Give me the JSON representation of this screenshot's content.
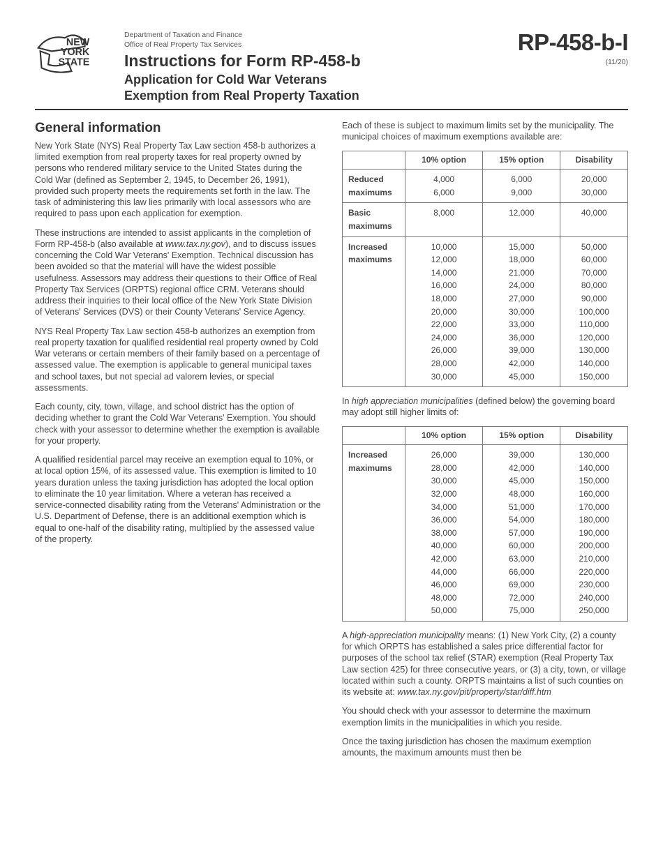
{
  "header": {
    "dept_line1": "Department of Taxation and Finance",
    "dept_line2": "Office of Real Property Tax Services",
    "title": "Instructions for Form RP-458-b",
    "subtitle_l1": "Application for Cold War Veterans",
    "subtitle_l2": "Exemption from Real Property Taxation",
    "form_id": "RP-458-b-I",
    "form_date": "(11/20)",
    "logo_text1": "NEW",
    "logo_text2": "YORK",
    "logo_text3": "STATE"
  },
  "left": {
    "heading": "General information",
    "p1": "New York State (NYS) Real Property Tax Law section 458-b authorizes a limited exemption from real property taxes for real property owned by persons who rendered military service to the United States during the Cold War (defined as September 2, 1945, to December 26, 1991), provided such property meets the requirements set forth in the law. The task of administering this law lies primarily with local assessors who are required to pass upon each application for exemption.",
    "p2a": "These instructions are intended to assist applicants in the completion of Form RP-458-b (also available at ",
    "p2_link": "www.tax.ny.gov",
    "p2b": "), and to discuss issues concerning the Cold War Veterans' Exemption. Technical discussion has been avoided so that the material will have the widest possible usefulness. Assessors may address their questions to their Office of Real Property Tax Services  (ORPTS) regional office CRM. Veterans should address their inquiries to their local office of the New York State Division of Veterans' Services (DVS) or their County Veterans' Service Agency.",
    "p3": "NYS Real Property Tax Law section 458-b authorizes an exemption from real property taxation for qualified residential real property owned by Cold War veterans or certain members of their family based on a percentage of assessed value. The exemption is applicable to general municipal taxes and school taxes, but not special ad valorem levies, or special assessments.",
    "p4": "Each county, city, town, village, and school district has the option of deciding whether to grant the Cold War Veterans' Exemption. You should check with your assessor to determine whether the exemption is available for your property.",
    "p5": "A qualified residential parcel may receive an exemption equal to 10%, or at local option 15%, of its assessed value. This exemption is limited to 10 years duration unless the taxing jurisdiction has adopted the local option to eliminate the 10 year limitation. Where a veteran has received a service-connected disability rating from the Veterans' Administration or the U.S. Department of Defense, there is an additional exemption which is equal to one-half of the disability rating, multiplied by the assessed value of the property."
  },
  "right": {
    "intro": "Each of these is subject to maximum limits set by the municipality. The municipal choices of maximum exemptions available are:",
    "table1": {
      "headers": [
        "",
        "10% option",
        "15% option",
        "Disability"
      ],
      "rows": [
        {
          "label": "Reduced maximums",
          "c1": "4,000\n6,000",
          "c2": "6,000\n9,000",
          "c3": "20,000\n30,000"
        },
        {
          "label": "Basic maximums",
          "c1": "8,000",
          "c2": "12,000",
          "c3": "40,000"
        },
        {
          "label": "Increased maximums",
          "c1": "10,000\n12,000\n14,000\n16,000\n18,000\n20,000\n22,000\n24,000\n26,000\n28,000\n30,000",
          "c2": "15,000\n18,000\n21,000\n24,000\n27,000\n30,000\n33,000\n36,000\n39,000\n42,000\n45,000",
          "c3": "50,000\n60,000\n70,000\n80,000\n90,000\n100,000\n110,000\n120,000\n130,000\n140,000\n150,000"
        }
      ]
    },
    "mid_a": "In ",
    "mid_i": "high appreciation municipalities",
    "mid_b": " (defined below) the governing board may adopt still higher limits of:",
    "table2": {
      "headers": [
        "",
        "10% option",
        "15% option",
        "Disability"
      ],
      "rows": [
        {
          "label": "Increased maximums",
          "c1": "26,000\n28,000\n30,000\n32,000\n34,000\n36,000\n38,000\n40,000\n42,000\n44,000\n46,000\n48,000\n50,000",
          "c2": "39,000\n42,000\n45,000\n48,000\n51,000\n54,000\n57,000\n60,000\n63,000\n66,000\n69,000\n72,000\n75,000",
          "c3": "130,000\n140,000\n150,000\n160,000\n170,000\n180,000\n190,000\n200,000\n210,000\n220,000\n230,000\n240,000\n250,000"
        }
      ]
    },
    "p_def_a": "A ",
    "p_def_i": "high-appreciation municipality",
    "p_def_b": " means: (1) New York City, (2) a county for which ORPTS has established a sales price differential factor for purposes of the school tax relief (STAR) exemption (Real Property Tax Law section 425) for three consecutive years, or (3) a city, town, or village located within such a county. ORPTS maintains a list of such counties on its website at: ",
    "p_def_link": "www.tax.ny.gov/pit/property/star/diff.htm",
    "p_check": "You should check with your assessor to determine the maximum exemption limits in the municipalities in which you reside.",
    "p_last": "Once the taxing jurisdiction has chosen the maximum exemption amounts, the maximum amounts must then be"
  }
}
